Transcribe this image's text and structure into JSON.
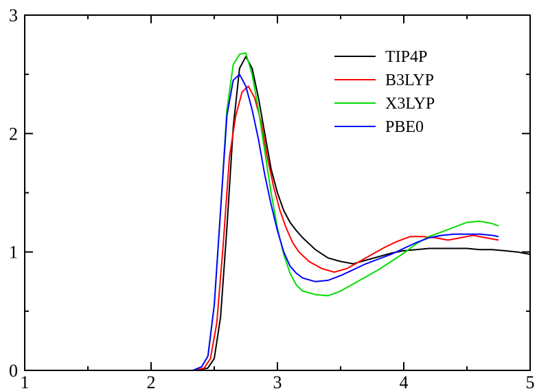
{
  "chart_data": {
    "type": "line",
    "title": "",
    "xlabel": "",
    "ylabel": "",
    "xlim": [
      1,
      5
    ],
    "ylim": [
      0,
      3
    ],
    "xticks": [
      1,
      2,
      3,
      4,
      5
    ],
    "yticks": [
      0,
      1,
      2,
      3
    ],
    "grid": false,
    "legend": "top-right",
    "series": [
      {
        "name": "TIP4P",
        "color": "#000000",
        "x": [
          1.0,
          2.35,
          2.45,
          2.5,
          2.55,
          2.6,
          2.65,
          2.7,
          2.75,
          2.8,
          2.85,
          2.9,
          2.95,
          3.0,
          3.05,
          3.1,
          3.15,
          3.2,
          3.3,
          3.4,
          3.5,
          3.6,
          3.7,
          3.8,
          3.9,
          4.0,
          4.1,
          4.2,
          4.3,
          4.4,
          4.5,
          4.6,
          4.7,
          4.8,
          4.9,
          5.0
        ],
        "y": [
          0.0,
          0.0,
          0.02,
          0.1,
          0.45,
          1.2,
          2.05,
          2.55,
          2.65,
          2.55,
          2.3,
          2.0,
          1.7,
          1.5,
          1.35,
          1.25,
          1.18,
          1.12,
          1.02,
          0.95,
          0.92,
          0.9,
          0.93,
          0.96,
          0.99,
          1.01,
          1.02,
          1.03,
          1.03,
          1.03,
          1.03,
          1.02,
          1.02,
          1.01,
          1.0,
          0.98
        ]
      },
      {
        "name": "B3LYP",
        "color": "#ff0000",
        "x": [
          1.0,
          2.35,
          2.42,
          2.47,
          2.52,
          2.57,
          2.62,
          2.67,
          2.72,
          2.77,
          2.82,
          2.87,
          2.92,
          2.97,
          3.02,
          3.07,
          3.12,
          3.17,
          3.25,
          3.35,
          3.45,
          3.55,
          3.65,
          3.75,
          3.85,
          3.95,
          4.05,
          4.15,
          4.25,
          4.35,
          4.45,
          4.55,
          4.65,
          4.75
        ],
        "y": [
          0.0,
          0.0,
          0.02,
          0.1,
          0.4,
          1.05,
          1.8,
          2.15,
          2.35,
          2.4,
          2.3,
          2.1,
          1.8,
          1.55,
          1.35,
          1.2,
          1.08,
          1.0,
          0.92,
          0.86,
          0.83,
          0.86,
          0.92,
          0.98,
          1.04,
          1.09,
          1.13,
          1.13,
          1.12,
          1.1,
          1.12,
          1.14,
          1.12,
          1.1
        ]
      },
      {
        "name": "X3LYP",
        "color": "#00dd00",
        "x": [
          1.0,
          2.33,
          2.4,
          2.45,
          2.5,
          2.55,
          2.6,
          2.65,
          2.7,
          2.75,
          2.8,
          2.85,
          2.9,
          2.95,
          3.0,
          3.05,
          3.1,
          3.15,
          3.2,
          3.3,
          3.4,
          3.5,
          3.6,
          3.7,
          3.8,
          3.9,
          4.0,
          4.1,
          4.2,
          4.3,
          4.4,
          4.5,
          4.6,
          4.7,
          4.75
        ],
        "y": [
          0.0,
          0.0,
          0.03,
          0.12,
          0.55,
          1.35,
          2.2,
          2.58,
          2.67,
          2.68,
          2.5,
          2.2,
          1.85,
          1.5,
          1.2,
          0.98,
          0.82,
          0.72,
          0.67,
          0.64,
          0.63,
          0.67,
          0.73,
          0.79,
          0.85,
          0.92,
          0.99,
          1.07,
          1.13,
          1.17,
          1.21,
          1.25,
          1.26,
          1.24,
          1.22
        ]
      },
      {
        "name": "PBE0",
        "color": "#0000ff",
        "x": [
          1.0,
          2.33,
          2.4,
          2.45,
          2.5,
          2.55,
          2.6,
          2.65,
          2.7,
          2.75,
          2.8,
          2.85,
          2.9,
          2.95,
          3.0,
          3.05,
          3.1,
          3.15,
          3.2,
          3.3,
          3.4,
          3.5,
          3.6,
          3.7,
          3.8,
          3.9,
          4.0,
          4.1,
          4.2,
          4.3,
          4.4,
          4.5,
          4.6,
          4.7,
          4.75
        ],
        "y": [
          0.0,
          0.0,
          0.03,
          0.12,
          0.55,
          1.35,
          2.15,
          2.45,
          2.5,
          2.4,
          2.2,
          1.95,
          1.65,
          1.4,
          1.18,
          1.0,
          0.88,
          0.82,
          0.78,
          0.75,
          0.76,
          0.8,
          0.85,
          0.9,
          0.94,
          0.98,
          1.03,
          1.08,
          1.12,
          1.14,
          1.15,
          1.15,
          1.15,
          1.14,
          1.13
        ]
      }
    ]
  }
}
